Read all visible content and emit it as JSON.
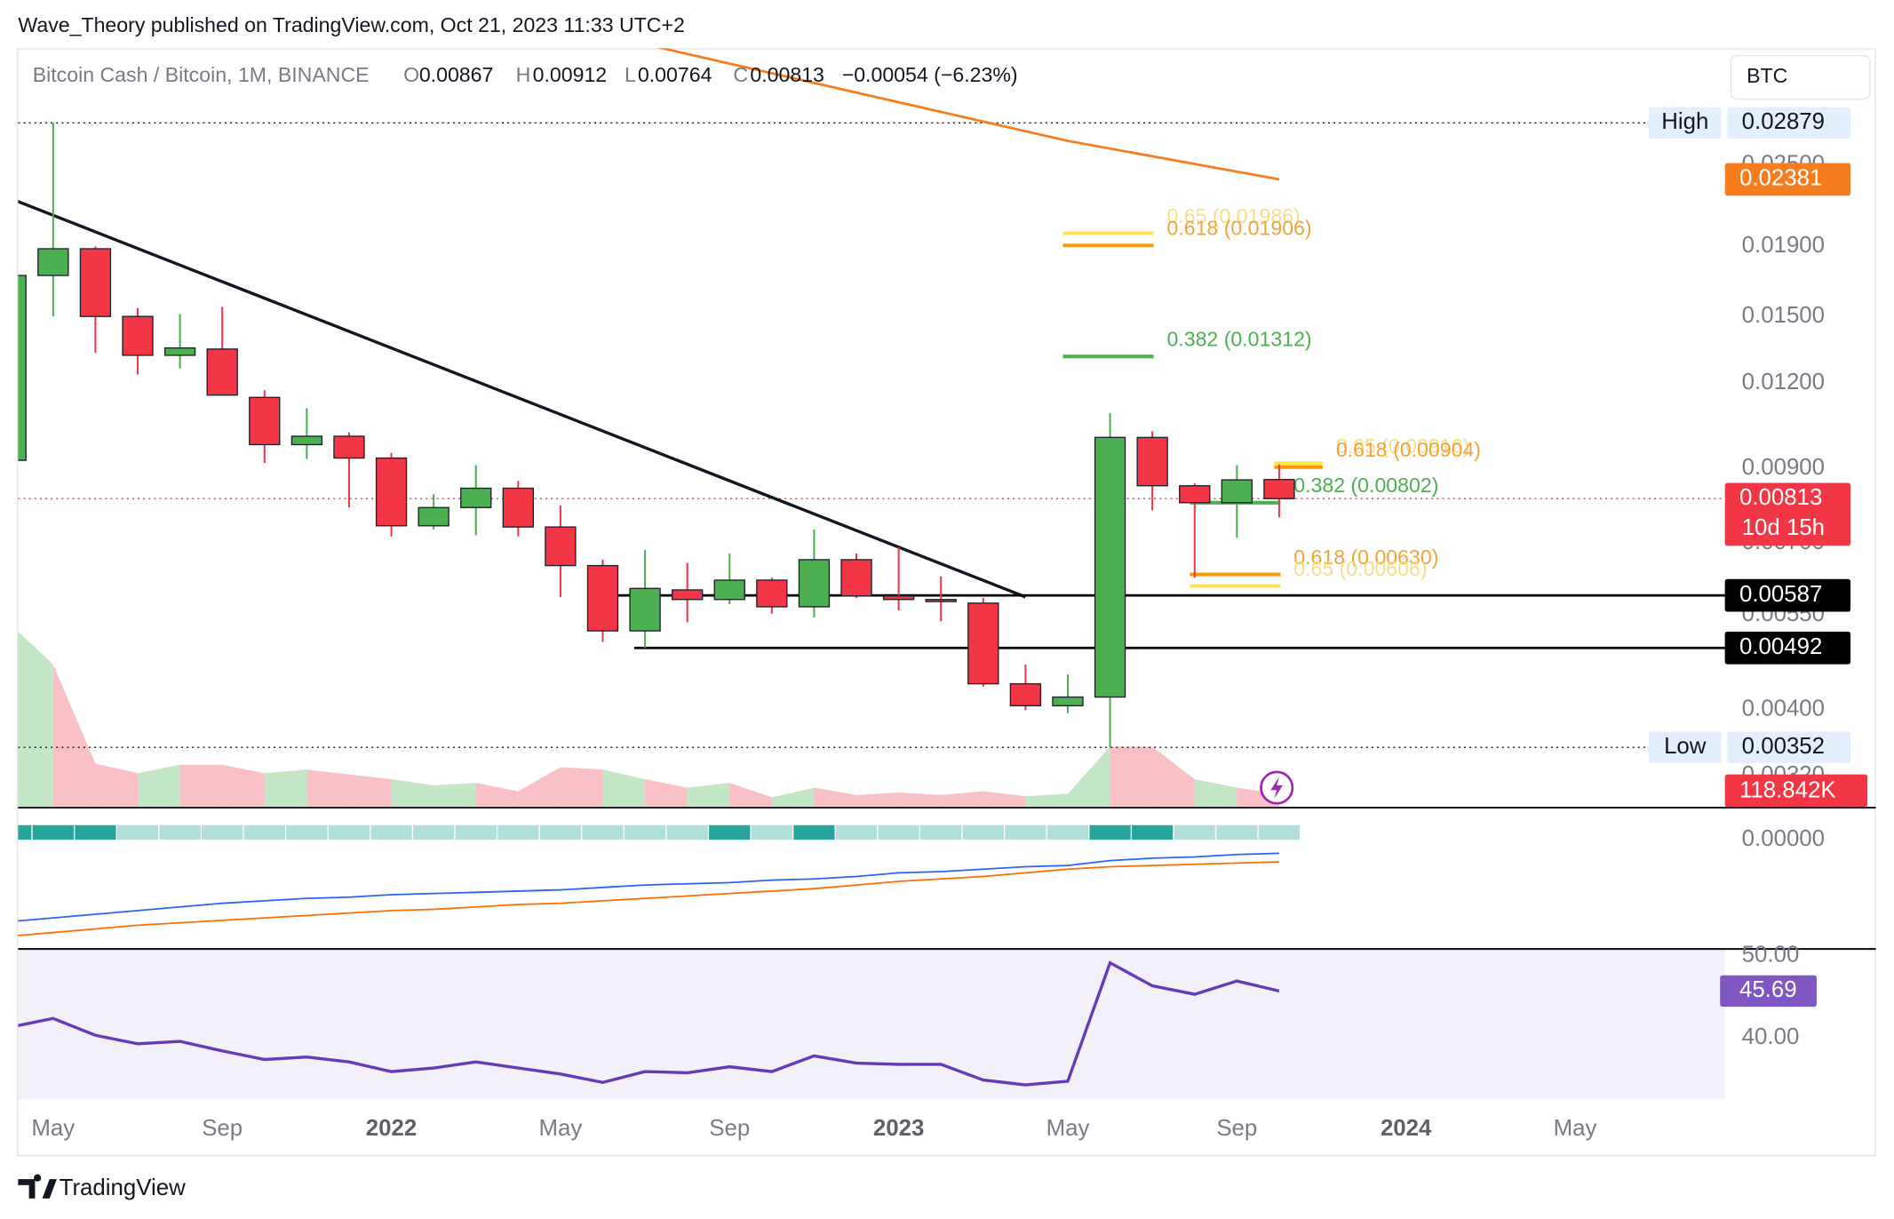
{
  "chart_data": {
    "type": "candlestick",
    "publisher": "Wave_Theory published on TradingView.com, Oct 21, 2023 11:33 UTC+2",
    "title": "Bitcoin Cash / Bitcoin, 1M, BINANCE",
    "ohlc_labels": {
      "open": "O",
      "high": "H",
      "low": "L",
      "close": "C"
    },
    "change_label": "−0.00054 (−6.23%)",
    "currency": "BTC",
    "branding": "TradingView",
    "log_scale": true,
    "up_color": "#4caf50",
    "down_color": "#f23645",
    "x": [
      "2021-04",
      "2021-05",
      "2021-06",
      "2021-07",
      "2021-08",
      "2021-09",
      "2021-10",
      "2021-11",
      "2021-12",
      "2022-01",
      "2022-02",
      "2022-03",
      "2022-04",
      "2022-05",
      "2022-06",
      "2022-07",
      "2022-08",
      "2022-09",
      "2022-10",
      "2022-11",
      "2022-12",
      "2023-01",
      "2023-02",
      "2023-03",
      "2023-04",
      "2023-05",
      "2023-06",
      "2023-07",
      "2023-08",
      "2023-09",
      "2023-10"
    ],
    "open": [
      0.00925,
      0.01723,
      0.01885,
      0.01501,
      0.01317,
      0.01345,
      0.01143,
      0.00975,
      0.01003,
      0.00932,
      0.00742,
      0.00789,
      0.00842,
      0.00739,
      0.00649,
      0.00521,
      0.00598,
      0.00579,
      0.00618,
      0.00565,
      0.00662,
      0.00586,
      0.00579,
      0.00572,
      0.00436,
      0.00405,
      0.00417,
      0.00999,
      0.00849,
      0.00802,
      0.00867
    ],
    "high": [
      0.0175,
      0.02879,
      0.019,
      0.01544,
      0.01513,
      0.01551,
      0.01171,
      0.01102,
      0.01016,
      0.00948,
      0.00825,
      0.0091,
      0.00863,
      0.00795,
      0.00662,
      0.00684,
      0.00655,
      0.00676,
      0.00623,
      0.00733,
      0.00676,
      0.0069,
      0.00626,
      0.00582,
      0.00465,
      0.0045,
      0.01084,
      0.0102,
      0.00856,
      0.0091,
      0.00912
    ],
    "low": [
      0.009,
      0.01501,
      0.01328,
      0.01234,
      0.0126,
      0.01152,
      0.00917,
      0.00929,
      0.00789,
      0.00716,
      0.00733,
      0.00719,
      0.00716,
      0.00584,
      0.00502,
      0.00492,
      0.00536,
      0.0057,
      0.00552,
      0.00545,
      0.00582,
      0.00558,
      0.00538,
      0.00432,
      0.00399,
      0.00395,
      0.00352,
      0.00782,
      0.00623,
      0.00713,
      0.00764
    ],
    "close": [
      0.01723,
      0.01885,
      0.01501,
      0.01317,
      0.0135,
      0.01152,
      0.00975,
      0.01003,
      0.00932,
      0.00742,
      0.00789,
      0.00842,
      0.00739,
      0.00649,
      0.00521,
      0.00601,
      0.00579,
      0.00618,
      0.00565,
      0.00662,
      0.00586,
      0.00579,
      0.00575,
      0.00436,
      0.00405,
      0.00417,
      0.00999,
      0.00849,
      0.00802,
      0.00866,
      0.00813
    ],
    "ylim": [
      0.00288,
      0.037
    ],
    "yticks": [
      {
        "value": 0.025,
        "label": "0.02500"
      },
      {
        "value": 0.019,
        "label": "0.01900"
      },
      {
        "value": 0.015,
        "label": "0.01500"
      },
      {
        "value": 0.012,
        "label": "0.01200"
      },
      {
        "value": 0.009,
        "label": "0.00900"
      },
      {
        "value": 0.007,
        "label": "0.00700"
      },
      {
        "value": 0.0055,
        "label": "0.00550"
      },
      {
        "value": 0.004,
        "label": "0.00400"
      },
      {
        "value": 0.0032,
        "label": "0.00320"
      }
    ],
    "xticks": [
      {
        "value": "2021-05",
        "label": "May"
      },
      {
        "value": "2021-09",
        "label": "Sep"
      },
      {
        "value": "2022-01",
        "label": "2022"
      },
      {
        "value": "2022-05",
        "label": "May"
      },
      {
        "value": "2022-09",
        "label": "Sep"
      },
      {
        "value": "2023-01",
        "label": "2023"
      },
      {
        "value": "2023-05",
        "label": "May"
      },
      {
        "value": "2023-09",
        "label": "Sep"
      },
      {
        "value": "2024-01",
        "label": "2024"
      },
      {
        "value": "2024-05",
        "label": "May"
      }
    ],
    "high_label": "High",
    "low_label": "Low",
    "countdown": "10d 15h",
    "volume": {
      "values": [
        1630800,
        1274400,
        388800,
        302400,
        378000,
        378000,
        302400,
        334800,
        291600,
        248400,
        194400,
        216000,
        140400,
        356400,
        334800,
        248400,
        172800,
        216000,
        86400,
        172800,
        108000,
        129600,
        108000,
        140400,
        97200,
        118800,
        540000,
        540000,
        248400,
        172800,
        118842
      ],
      "value_labels": {
        "30": "118.842K"
      },
      "ylim": [
        0,
        6782400
      ],
      "up_color": "#c3e6c5",
      "down_color": "#f9c0c6"
    },
    "levels": [
      {
        "value": 0.00587,
        "from": "2022-06",
        "color": "#000000"
      },
      {
        "value": 0.00492,
        "from": "2022-07",
        "color": "#000000"
      }
    ],
    "trendline": {
      "x": [
        "2021-04",
        "2023-04"
      ],
      "values": [
        0.02231,
        0.00584
      ],
      "color": "#131722"
    },
    "moving_average": {
      "x": [
        "2022-07",
        "2023-05",
        "2023-10"
      ],
      "values": [
        0.03751,
        0.0271,
        0.02381
      ],
      "color": "#f57c1f"
    },
    "fib_levels": [
      {
        "label": "0.65 (0.01986)",
        "value": 0.01986,
        "from": "2023-05",
        "to": "2023-07",
        "color": "#ffe44d",
        "text_color": "#f5dd8a"
      },
      {
        "label": "0.618 (0.01906)",
        "value": 0.01906,
        "from": "2023-05",
        "to": "2023-07",
        "color": "#ff9800",
        "text_color": "#f2a33a"
      },
      {
        "label": "0.382 (0.01312)",
        "value": 0.01312,
        "from": "2023-05",
        "to": "2023-07",
        "color": "#4caf50",
        "text_color": "#4caf50"
      },
      {
        "label": "0.65 (0.00916)",
        "value": 0.00916,
        "from": "2023-10",
        "to": "2023-11",
        "color": "#ffe44d",
        "text_color": "#f5dd8a"
      },
      {
        "label": "0.618 (0.00904)",
        "value": 0.00904,
        "from": "2023-10",
        "to": "2023-11",
        "color": "#ff9800",
        "text_color": "#f2a33a"
      },
      {
        "label": "0.382 (0.00802)",
        "value": 0.00802,
        "from": "2023-08",
        "to": "2023-10",
        "color": "#4caf50",
        "text_color": "#4caf50"
      },
      {
        "label": "0.618 (0.00630)",
        "value": 0.0063,
        "from": "2023-08",
        "to": "2023-10",
        "color": "#ff9800",
        "text_color": "#f2a33a"
      },
      {
        "label": "0.65 (0.00606)",
        "value": 0.00606,
        "from": "2023-08",
        "to": "2023-10",
        "color": "#ffe44d",
        "text_color": "#f5dd8a"
      }
    ],
    "ribbon": {
      "colors": [
        "#26a69a",
        "#26a69a",
        "#26a69a",
        "#b2dfdb",
        "#b2dfdb",
        "#b2dfdb",
        "#b2dfdb",
        "#b2dfdb",
        "#b2dfdb",
        "#b2dfdb",
        "#b2dfdb",
        "#b2dfdb",
        "#b2dfdb",
        "#b2dfdb",
        "#b2dfdb",
        "#b2dfdb",
        "#b2dfdb",
        "#26a69a",
        "#b2dfdb",
        "#26a69a",
        "#b2dfdb",
        "#b2dfdb",
        "#b2dfdb",
        "#b2dfdb",
        "#b2dfdb",
        "#b2dfdb",
        "#26a69a",
        "#26a69a",
        "#b2dfdb",
        "#b2dfdb",
        "#b2dfdb"
      ]
    },
    "macd": {
      "ylim": [
        -0.0089,
        0.0026
      ],
      "yticks": [
        {
          "value": 0,
          "label": "0.00000"
        }
      ],
      "series": [
        {
          "color": "#2962ff",
          "values": [
            -0.0067,
            -0.0064,
            -0.0061,
            -0.0058,
            -0.0055,
            -0.0052,
            -0.005,
            -0.0048,
            -0.0047,
            -0.0045,
            -0.0044,
            -0.0043,
            -0.0042,
            -0.0041,
            -0.0039,
            -0.0037,
            -0.0036,
            -0.0035,
            -0.0033,
            -0.0032,
            -0.003,
            -0.0027,
            -0.0026,
            -0.0024,
            -0.0022,
            -0.0021,
            -0.0017,
            -0.0015,
            -0.0014,
            -0.0012,
            -0.0011
          ]
        },
        {
          "color": "#ff6d00",
          "values": [
            -0.0079,
            -0.0076,
            -0.0073,
            -0.007,
            -0.0068,
            -0.0066,
            -0.0064,
            -0.0062,
            -0.006,
            -0.0058,
            -0.0057,
            -0.0055,
            -0.0053,
            -0.0052,
            -0.005,
            -0.0048,
            -0.0046,
            -0.0044,
            -0.0042,
            -0.004,
            -0.0037,
            -0.0034,
            -0.0032,
            -0.003,
            -0.0027,
            -0.0024,
            -0.0022,
            -0.0021,
            -0.002,
            -0.0019,
            -0.0018
          ]
        }
      ]
    },
    "rsi": {
      "color": "#673ab7",
      "ylim": [
        32.5,
        50.88
      ],
      "yticks": [
        {
          "value": 50,
          "label": "50.00"
        },
        {
          "value": 40,
          "label": "40.00"
        }
      ],
      "values": [
        41.3,
        42.35,
        40.3,
        39.26,
        39.56,
        38.4,
        37.35,
        37.65,
        37.06,
        35.88,
        36.32,
        37.06,
        36.32,
        35.59,
        34.56,
        35.88,
        35.74,
        36.47,
        35.88,
        37.79,
        36.91,
        36.76,
        36.76,
        34.85,
        34.26,
        34.71,
        49.12,
        46.32,
        45.29,
        46.91,
        45.69
      ]
    }
  }
}
